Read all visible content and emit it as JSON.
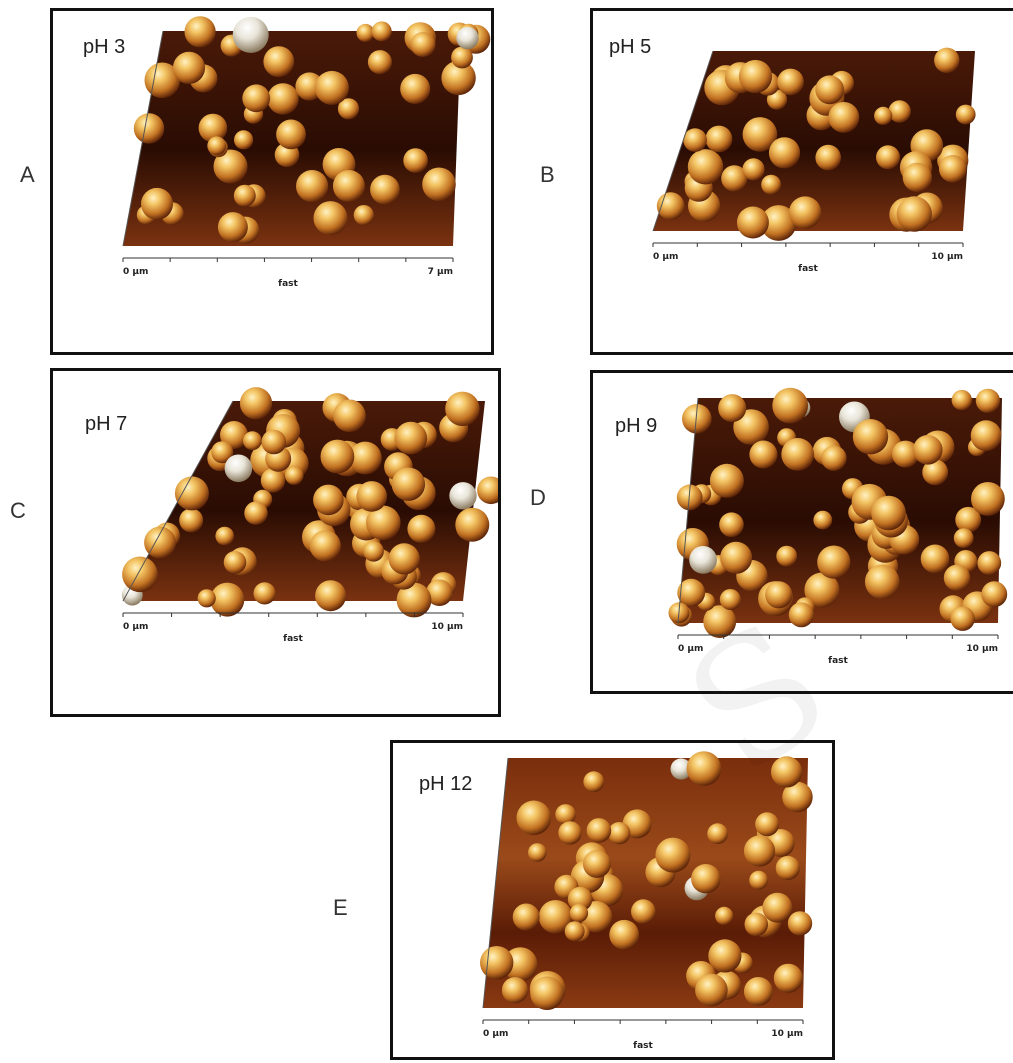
{
  "panels": [
    {
      "letter": "A",
      "ph": "pH 3",
      "axis_start": "0 µm",
      "axis_mid": "fast",
      "axis_end": "7 µm"
    },
    {
      "letter": "B",
      "ph": "pH 5",
      "axis_start": "0 µm",
      "axis_mid": "fast",
      "axis_end": "10 µm"
    },
    {
      "letter": "C",
      "ph": "pH 7",
      "axis_start": "0 µm",
      "axis_mid": "fast",
      "axis_end": "10 µm"
    },
    {
      "letter": "D",
      "ph": "pH 9",
      "axis_start": "0 µm",
      "axis_mid": "fast",
      "axis_end": "10 µm"
    },
    {
      "letter": "E",
      "ph": "pH 12",
      "axis_start": "0 µm",
      "axis_mid": "fast",
      "axis_end": "10 µm"
    }
  ],
  "colors": {
    "surface_dark": "#3a1406",
    "surface_mid": "#8a3d12",
    "particle_light": "#f7d27a",
    "particle_dark": "#b8641c",
    "frame": "#111111"
  }
}
